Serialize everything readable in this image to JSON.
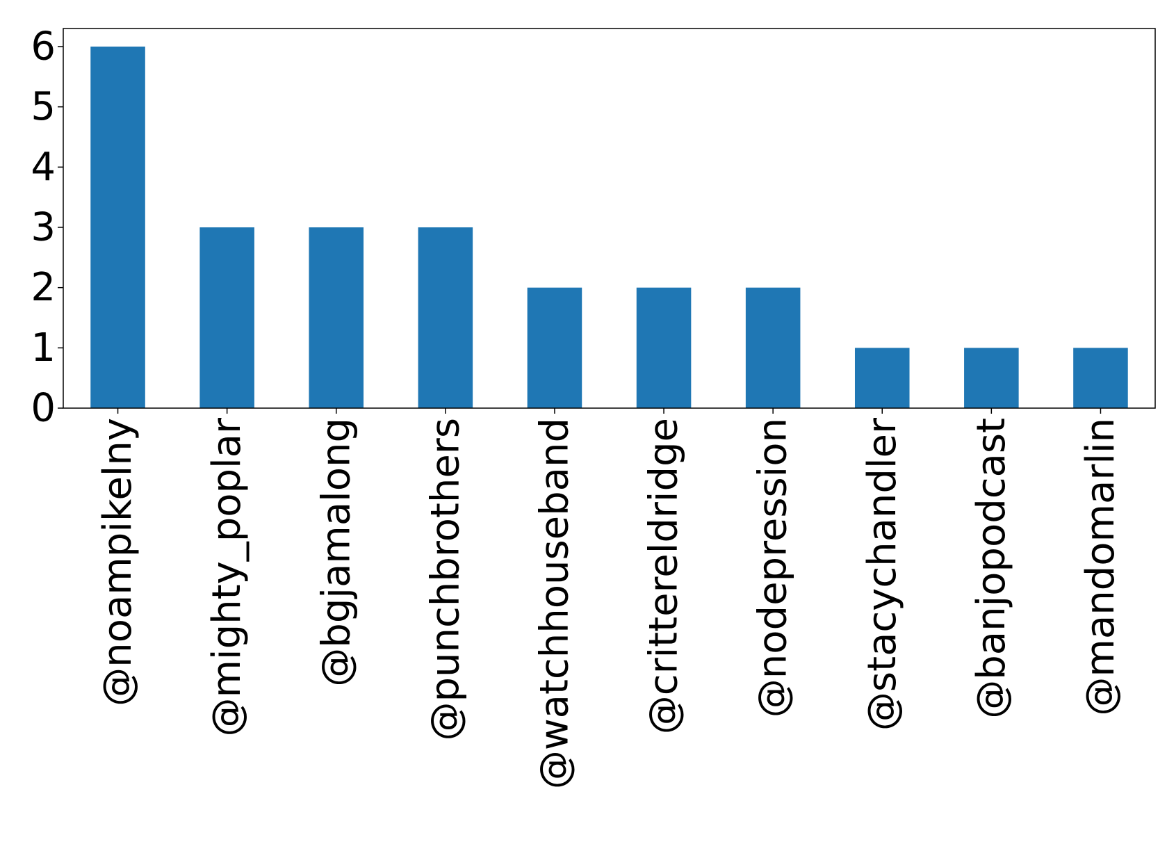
{
  "chart_data": {
    "type": "bar",
    "title": "",
    "xlabel": "",
    "ylabel": "",
    "categories": [
      "@noampikelny",
      "@mighty_poplar",
      "@bgjamalong",
      "@punchbrothers",
      "@watchhouseband",
      "@crittereldridge",
      "@nodepression",
      "@stacychandler",
      "@banjopodcast",
      "@mandomarlin"
    ],
    "values": [
      6,
      3,
      3,
      3,
      2,
      2,
      2,
      1,
      1,
      1
    ],
    "ylim": [
      0,
      6.3
    ],
    "yticks": [
      0,
      1,
      2,
      3,
      4,
      5,
      6
    ],
    "grid": false,
    "legend": "none",
    "bar_color": "#1f77b4",
    "axis_color": "#000000"
  }
}
